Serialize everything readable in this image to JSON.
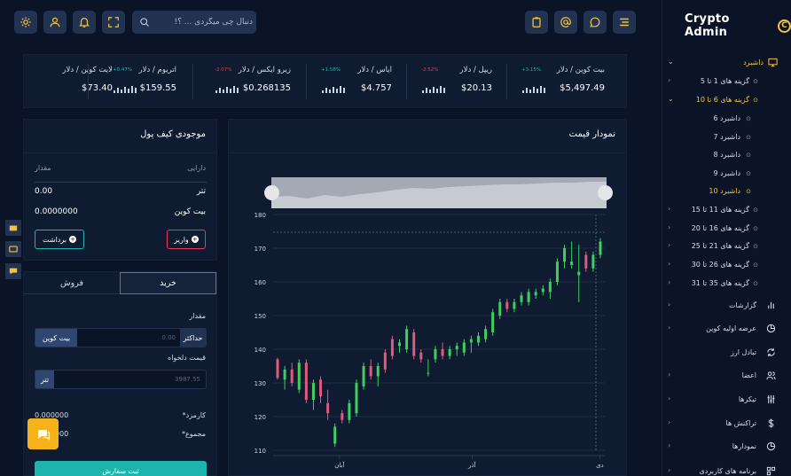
{
  "header": {
    "search_placeholder": "دنبال چی میگردی ... ؟!"
  },
  "sidebar": {
    "logo_text": "Crypto Admin",
    "items": [
      {
        "label": "داشبرد",
        "active": true
      },
      {
        "label": "گزینه های 1 تا 5"
      },
      {
        "label": "گزینه های 6 تا 10",
        "active": true
      },
      {
        "label": "داشبرد 6"
      },
      {
        "label": "داشبرد 7"
      },
      {
        "label": "داشبرد 8"
      },
      {
        "label": "داشبرد 9"
      },
      {
        "label": "داشبرد 10",
        "active": true
      },
      {
        "label": "گزینه های 11 تا 15"
      },
      {
        "label": "گزینه های 16 تا 20"
      },
      {
        "label": "گزینه های 21 تا 25"
      },
      {
        "label": "گزینه های 26 تا 30"
      },
      {
        "label": "گزینه های 35 تا 31"
      },
      {
        "label": "گزارشات"
      },
      {
        "label": "عرضه اولیه کوین"
      },
      {
        "label": "تبادل ارز"
      },
      {
        "label": "اعضا"
      },
      {
        "label": "تیکرها"
      },
      {
        "label": "تراکنش ها"
      },
      {
        "label": "نمودارها"
      },
      {
        "label": "برنامه های کاربردی"
      }
    ]
  },
  "ticker": [
    {
      "name": "لایت کوین / دلار",
      "change": "",
      "price": "$73.40",
      "change_color": "#1cb5ad"
    },
    {
      "name": "اتریوم / دلار",
      "change": "+0.47%",
      "price": "$159.55",
      "change_color": "#1cb5ad"
    },
    {
      "name": "زیرو ایکس / دلار",
      "change": "-2.07%",
      "price": "$0.268135",
      "change_color": "#e8395a"
    },
    {
      "name": "ایاس / دلار",
      "change": "+1.58%",
      "price": "$4.757",
      "change_color": "#1cb5ad"
    },
    {
      "name": "ریپل / دلار",
      "change": "-2.52%",
      "price": "$20.13",
      "change_color": "#e8395a"
    },
    {
      "name": "بیت کوین / دلار",
      "change": "+3.15%",
      "price": "$5,497.49",
      "change_color": "#1cb5ad"
    }
  ],
  "chart_panel": {
    "title": "نمودار قیمت"
  },
  "chart_data": {
    "type": "candlestick",
    "ylim": [
      110,
      180
    ],
    "yticks": [
      110,
      120,
      130,
      140,
      150,
      160,
      170,
      180
    ],
    "xticks": [
      "آبان",
      "آذر",
      "دی"
    ],
    "up_color": "#3ecf5e",
    "down_color": "#e05a7d",
    "candles": [
      {
        "o": 137,
        "h": 137.5,
        "l": 131,
        "c": 131.5
      },
      {
        "o": 131,
        "h": 135,
        "l": 128,
        "c": 134
      },
      {
        "o": 134,
        "h": 136,
        "l": 129,
        "c": 130
      },
      {
        "o": 128,
        "h": 137,
        "l": 127,
        "c": 136
      },
      {
        "o": 136,
        "h": 137,
        "l": 124,
        "c": 125
      },
      {
        "o": 125,
        "h": 131,
        "l": 122,
        "c": 130
      },
      {
        "o": 131,
        "h": 132,
        "l": 124,
        "c": 126
      },
      {
        "o": 124,
        "h": 128,
        "l": 119,
        "c": 121
      },
      {
        "o": 112,
        "h": 118,
        "l": 111,
        "c": 117
      },
      {
        "o": 121,
        "h": 122,
        "l": 118,
        "c": 119
      },
      {
        "o": 119,
        "h": 125,
        "l": 118,
        "c": 124
      },
      {
        "o": 121,
        "h": 131,
        "l": 120,
        "c": 130
      },
      {
        "o": 129,
        "h": 136,
        "l": 128,
        "c": 135
      },
      {
        "o": 135,
        "h": 137,
        "l": 131,
        "c": 132
      },
      {
        "o": 132,
        "h": 136,
        "l": 129,
        "c": 135
      },
      {
        "o": 139,
        "h": 140,
        "l": 133,
        "c": 134
      },
      {
        "o": 143,
        "h": 144,
        "l": 137,
        "c": 138
      },
      {
        "o": 141,
        "h": 143,
        "l": 139,
        "c": 142
      },
      {
        "o": 140,
        "h": 147,
        "l": 139,
        "c": 146
      },
      {
        "o": 145,
        "h": 146,
        "l": 137,
        "c": 138
      },
      {
        "o": 139,
        "h": 140,
        "l": 136,
        "c": 137
      },
      {
        "o": 133,
        "h": 137,
        "l": 132,
        "c": 133
      },
      {
        "o": 137,
        "h": 141,
        "l": 136,
        "c": 140
      },
      {
        "o": 140,
        "h": 142,
        "l": 137,
        "c": 138
      },
      {
        "o": 138,
        "h": 141,
        "l": 137,
        "c": 140
      },
      {
        "o": 140,
        "h": 142,
        "l": 138,
        "c": 141
      },
      {
        "o": 139,
        "h": 143,
        "l": 138,
        "c": 142
      },
      {
        "o": 142,
        "h": 144,
        "l": 139,
        "c": 143
      },
      {
        "o": 142,
        "h": 145,
        "l": 141,
        "c": 144
      },
      {
        "o": 143,
        "h": 147,
        "l": 142,
        "c": 146
      },
      {
        "o": 145,
        "h": 152,
        "l": 144,
        "c": 151
      },
      {
        "o": 150,
        "h": 155,
        "l": 149,
        "c": 154
      },
      {
        "o": 154,
        "h": 155,
        "l": 151,
        "c": 152
      },
      {
        "o": 152,
        "h": 155,
        "l": 151,
        "c": 154
      },
      {
        "o": 154,
        "h": 157,
        "l": 153,
        "c": 156
      },
      {
        "o": 154,
        "h": 158,
        "l": 153,
        "c": 157
      },
      {
        "o": 156,
        "h": 158,
        "l": 155,
        "c": 157
      },
      {
        "o": 157,
        "h": 159,
        "l": 156,
        "c": 158
      },
      {
        "o": 157,
        "h": 161,
        "l": 155,
        "c": 160
      },
      {
        "o": 160,
        "h": 167,
        "l": 159,
        "c": 166
      },
      {
        "o": 166,
        "h": 171,
        "l": 164,
        "c": 170
      },
      {
        "o": 165,
        "h": 172,
        "l": 164,
        "c": 166
      },
      {
        "o": 162,
        "h": 171,
        "l": 154,
        "c": 163
      },
      {
        "o": 168,
        "h": 169,
        "l": 163,
        "c": 164
      },
      {
        "o": 164,
        "h": 169,
        "l": 163,
        "c": 168
      },
      {
        "o": 168,
        "h": 173,
        "l": 167,
        "c": 172
      }
    ]
  },
  "wallet": {
    "title": "موجودی کیف پول",
    "col_asset": "دارایی",
    "col_amount": "مقدار",
    "rows": [
      {
        "asset": "تتر",
        "amount": "0.00"
      },
      {
        "asset": "بیت کوین",
        "amount": "0.0000000"
      }
    ],
    "deposit_label": "واریز",
    "withdraw_label": "برداشت"
  },
  "trade": {
    "tab_buy": "خرید",
    "tab_sell": "فروش",
    "amount_label": "مقدار",
    "amount_min_label": "حداکثر",
    "amount_value": "0.00",
    "amount_unit": "بیت کوین",
    "price_label": "قیمت دلخواه",
    "price_value": "3987.55",
    "price_unit": "تتر",
    "fee_label": "کارمزد*",
    "fee_value": "0.000000",
    "total_label": "مجموع*",
    "total_value": "0.000000",
    "submit_label": "ثبت سفارش"
  }
}
